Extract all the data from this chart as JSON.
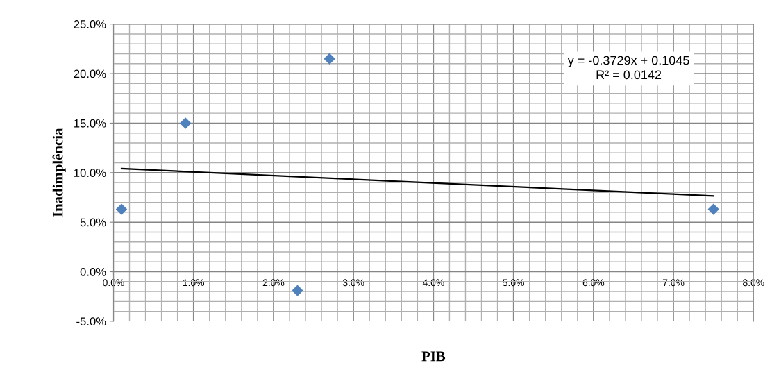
{
  "chart_data": {
    "type": "scatter",
    "xlabel": "PIB",
    "ylabel": "Inadimplência",
    "series": [
      {
        "color": "#4f81bd",
        "marker": "diamond",
        "x": [
          0.1,
          0.9,
          2.3,
          2.7,
          7.5
        ],
        "values": [
          6.3,
          15.0,
          -1.9,
          21.5,
          6.3
        ]
      },
      {
        "type": "line",
        "color": "#000000",
        "marker": "none",
        "line_style": "solid",
        "x": [
          0.1,
          7.5
        ],
        "values": [
          10.41,
          7.65
        ]
      }
    ],
    "xlim": [
      0,
      8
    ],
    "ylim": [
      -5,
      25
    ],
    "xticks": [
      {
        "value": 0,
        "label": "0.0%"
      },
      {
        "value": 1,
        "label": "1.0%"
      },
      {
        "value": 2,
        "label": "2.0%"
      },
      {
        "value": 3,
        "label": "3.0%"
      },
      {
        "value": 4,
        "label": "4.0%"
      },
      {
        "value": 5,
        "label": "5.0%"
      },
      {
        "value": 6,
        "label": "6.0%"
      },
      {
        "value": 7,
        "label": "7.0%"
      },
      {
        "value": 8,
        "label": "8.0%"
      }
    ],
    "yticks": [
      {
        "value": -5,
        "label": "-5.0%"
      },
      {
        "value": 0,
        "label": "0.0%"
      },
      {
        "value": 5,
        "label": "5.0%"
      },
      {
        "value": 10,
        "label": "10.0%"
      },
      {
        "value": 15,
        "label": "15.0%"
      },
      {
        "value": 20,
        "label": "20.0%"
      },
      {
        "value": 25,
        "label": "25.0%"
      }
    ],
    "grid": true,
    "legend": false,
    "annotations": [
      "y = -0.3729x + 0.1045\nR² = 0.0142"
    ]
  }
}
